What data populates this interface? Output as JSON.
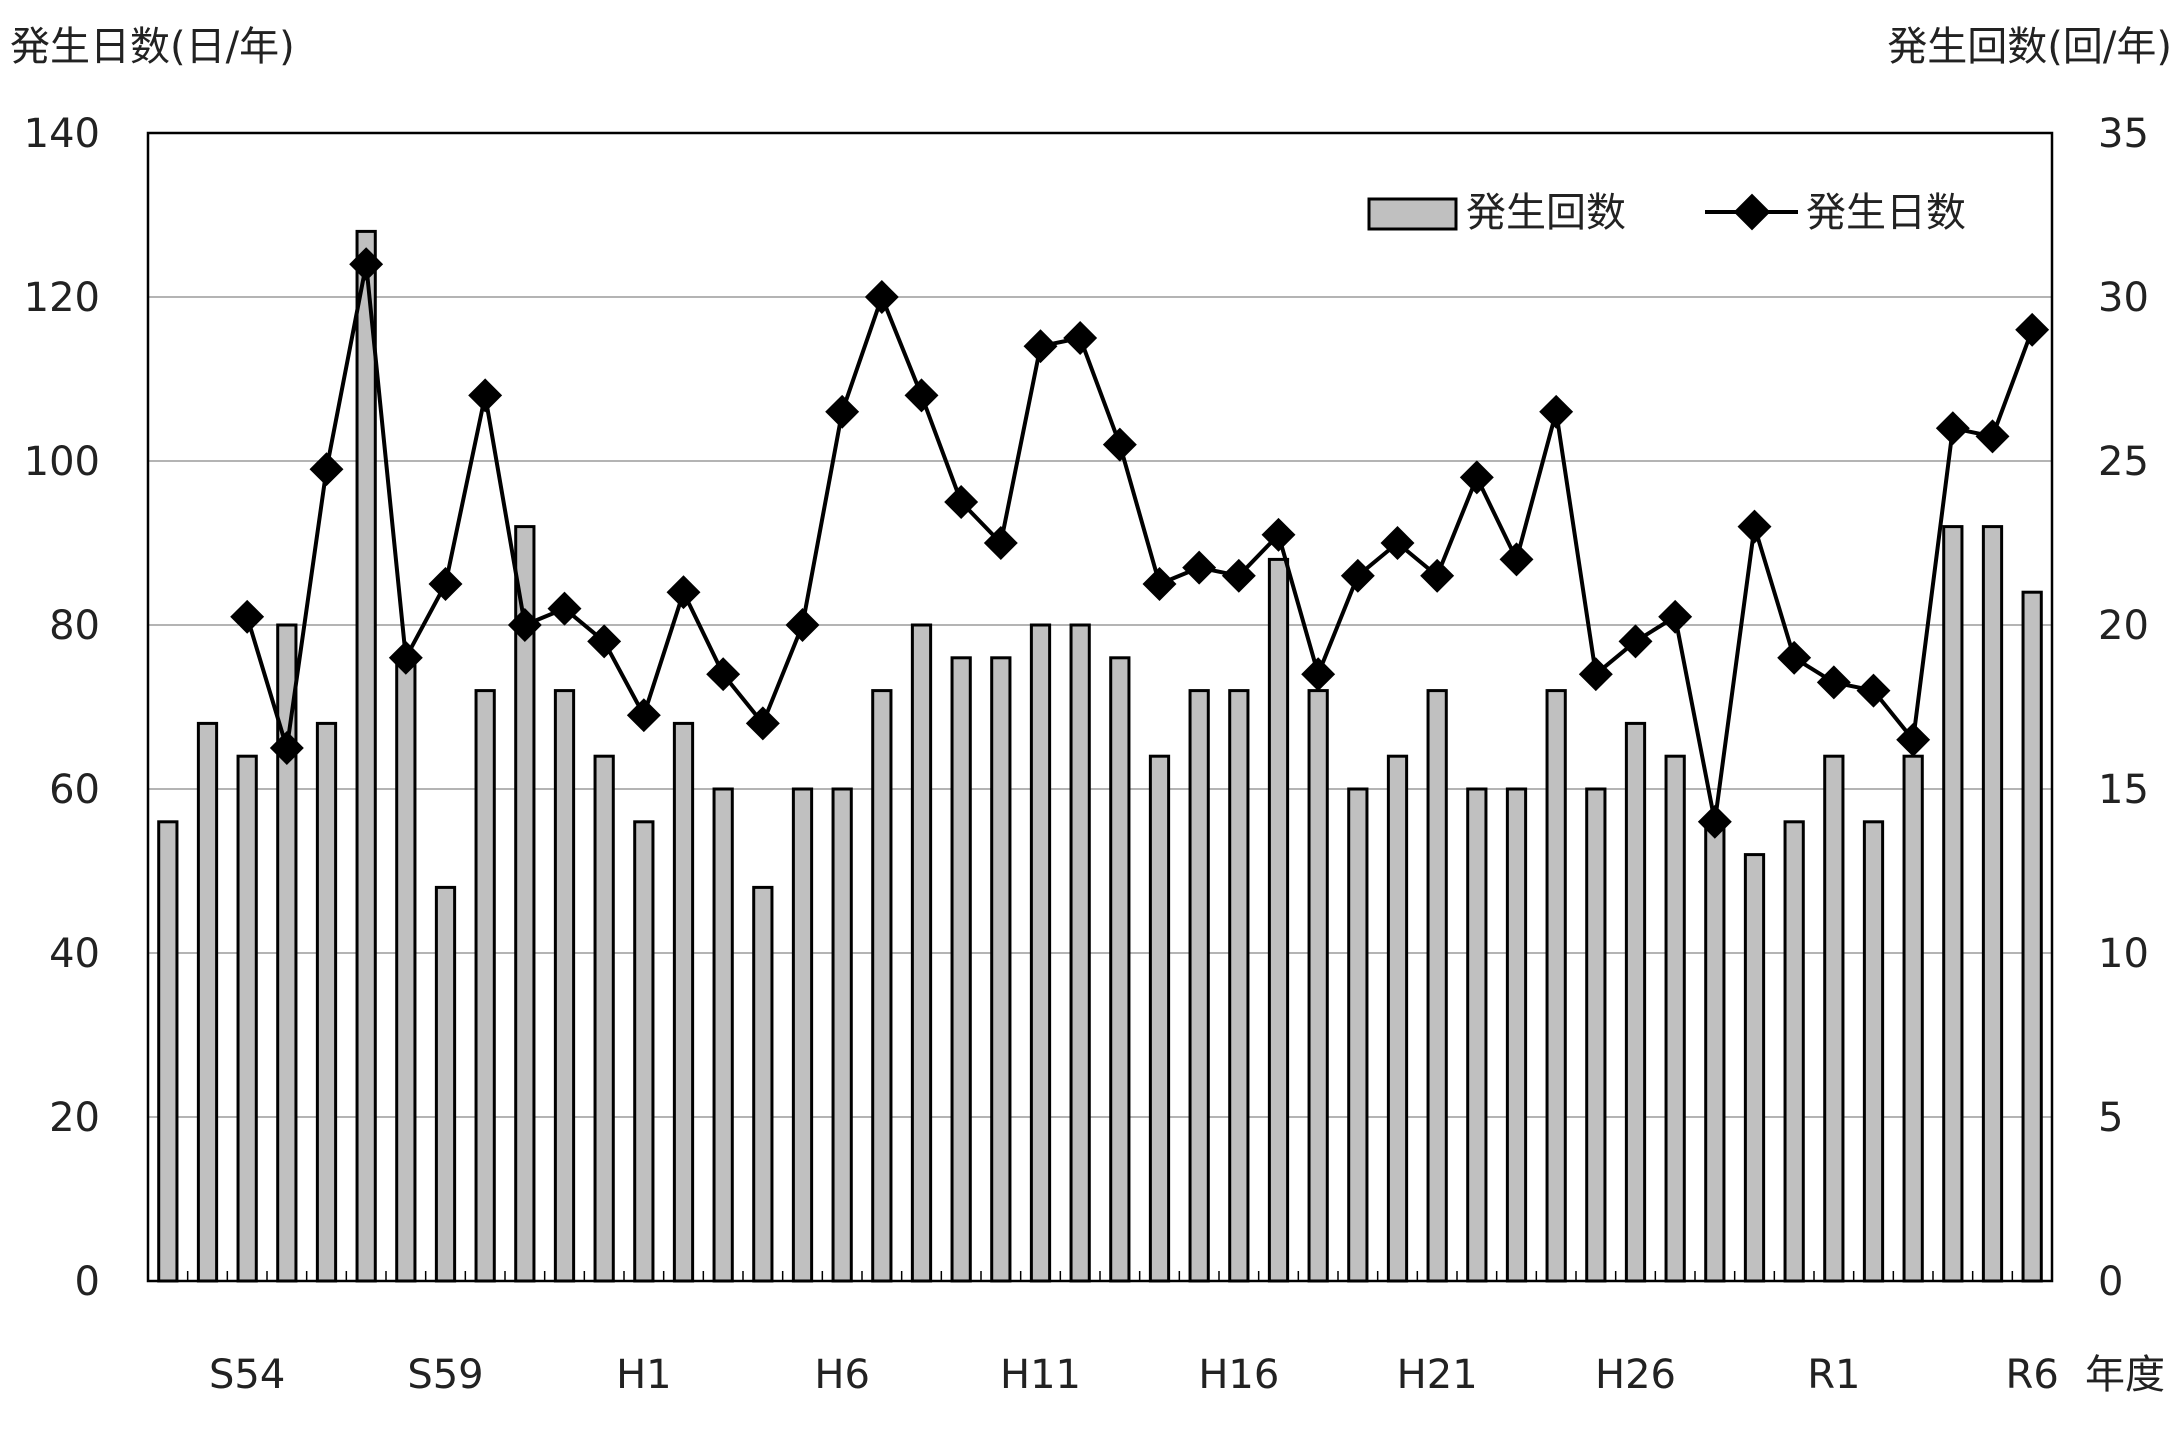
{
  "chart_data": {
    "type": "bar+line",
    "left_axis": {
      "label": "発生日数(日/年)",
      "ylim": [
        0,
        140
      ],
      "ticks": [
        0,
        20,
        40,
        60,
        80,
        100,
        120,
        140
      ]
    },
    "right_axis": {
      "label": "発生回数(回/年)",
      "ylim": [
        0,
        35
      ],
      "ticks": [
        0,
        5,
        10,
        15,
        20,
        25,
        30,
        35
      ]
    },
    "x_axis": {
      "label": "年度",
      "tick_labels": [
        "S54",
        "S59",
        "H1",
        "H6",
        "H11",
        "H16",
        "H21",
        "H26",
        "R1",
        "R6"
      ],
      "tick_label_index": [
        2,
        7,
        12,
        17,
        22,
        27,
        32,
        37,
        42,
        47
      ]
    },
    "grid": true,
    "legend": {
      "position": "top-right",
      "bar_label": "発生回数",
      "line_label": "発生日数"
    },
    "colors": {
      "bar_fill": "#c0c0c0",
      "bar_stroke": "#000000",
      "line": "#000000",
      "grid": "#888888"
    },
    "series": [
      {
        "name": "発生回数",
        "kind": "bar",
        "axis": "right",
        "values": [
          14,
          17,
          16,
          20,
          17,
          32,
          19,
          12,
          18,
          23,
          18,
          16,
          14,
          17,
          15,
          12,
          15,
          15,
          18,
          20,
          19,
          19,
          20,
          20,
          19,
          16,
          18,
          18,
          22,
          18,
          15,
          16,
          18,
          15,
          15,
          18,
          15,
          17,
          16,
          14,
          13,
          14,
          16,
          14,
          16,
          23,
          23,
          21
        ]
      },
      {
        "name": "発生日数",
        "kind": "line",
        "axis": "left",
        "start_index": 2,
        "values": [
          81,
          65,
          99,
          124,
          76,
          85,
          108,
          80,
          82,
          78,
          69,
          84,
          74,
          68,
          80,
          106,
          120,
          108,
          95,
          90,
          114,
          115,
          102,
          85,
          87,
          86,
          91,
          74,
          86,
          90,
          86,
          98,
          88,
          106,
          74,
          78,
          81,
          56,
          92,
          76,
          73,
          72,
          66,
          104,
          103,
          116
        ]
      }
    ]
  }
}
